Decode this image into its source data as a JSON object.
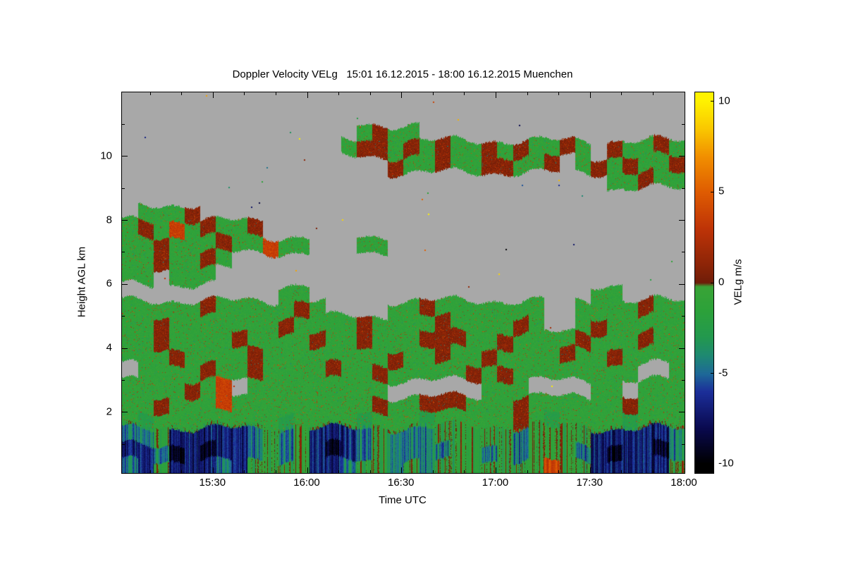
{
  "chart_data": {
    "type": "heatmap",
    "title": "Doppler Velocity VELg   15:01 16.12.2015 - 18:00 16.12.2015 Muenchen",
    "station": "Muenchen",
    "time_start": "15:01 16.12.2015",
    "time_end": "18:00 16.12.2015",
    "variable": "Doppler Velocity VELg (m/s)",
    "xlabel": "Time UTC",
    "ylabel": "Height AGL km",
    "x_tick_labels": [
      "15:30",
      "16:00",
      "16:30",
      "17:00",
      "17:30",
      "18:00"
    ],
    "x_tick_minutes": [
      930,
      960,
      990,
      1020,
      1050,
      1080
    ],
    "x_minor_step_minutes": 10,
    "x_range_minutes": [
      901,
      1080
    ],
    "y_ticks": [
      2,
      4,
      6,
      8,
      10
    ],
    "y_minor_ticks": [
      1,
      3,
      5,
      7,
      9,
      11
    ],
    "y_range_km": [
      0.1,
      12.0
    ],
    "colorbar": {
      "label": "VELg m/s",
      "ticks": [
        10,
        5,
        0,
        -5,
        -10
      ],
      "value_range": [
        -10,
        10
      ],
      "bar_range": [
        -10.5,
        10.5
      ],
      "stops": [
        [
          -10,
          "#000000"
        ],
        [
          -8,
          "#0a0a50"
        ],
        [
          -6,
          "#1c2f9a"
        ],
        [
          -5,
          "#1e6a98"
        ],
        [
          -4,
          "#1f8a72"
        ],
        [
          -3,
          "#23994f"
        ],
        [
          -1.5,
          "#2da23a"
        ],
        [
          -0.2,
          "#3aa437"
        ],
        [
          0.01,
          "#6f1d09"
        ],
        [
          1,
          "#8d2507"
        ],
        [
          3,
          "#bf3407"
        ],
        [
          5,
          "#df5c02"
        ],
        [
          7,
          "#f29100"
        ],
        [
          8.5,
          "#fac800"
        ],
        [
          10,
          "#fff200"
        ]
      ]
    },
    "no_data_color": "#a8a8a8",
    "background_color": "#ffffff",
    "grid_cell_km": 0.5,
    "grid_cols": 36,
    "grid_rows_order": "top row = 11.5-12.0 km, bottom row = 0.0-0.5 km; columns span 15:01 to 18:00 UTC (~5 min each)",
    "value_key": {
      ".": null,
      "g": -1.2,
      "G": -2.4,
      "o": 0.8,
      "r": 3.5,
      "t": -4.5,
      "b": -7.0,
      "k": -9.2
    },
    "grid_rows": [
      [
        "......",
        "......",
        "......",
        "......",
        "......",
        "......"
      ],
      [
        "......",
        "......",
        "......",
        "......",
        "......",
        "......"
      ],
      [
        "......",
        "......",
        "...gog",
        "g.....",
        "......",
        "......"
      ],
      [
        "......",
        "......",
        "..goog",
        "ogoggo",
        "goggog",
        ".oggog"
      ],
      [
        "......",
        "......",
        ".....o",
        "ggoggo",
        "oggo.g",
        "ogoggo"
      ],
      [
        "......",
        "......",
        "......",
        "......",
        "......",
        ".ggogg"
      ],
      [
        "......",
        "......",
        "......",
        "......",
        "......",
        "......"
      ],
      [
        ".gggo.",
        "......",
        "......",
        "......",
        "......",
        "......"
      ],
      [
        "gogrgo",
        "ggo...",
        "......",
        "......",
        "......",
        "......"
      ],
      [
        "ggoggg",
        "oggrgg",
        "...gg.",
        "......",
        "......",
        "......"
      ],
      [
        "ggoggo",
        "g.....",
        "......",
        "......",
        "......",
        "......"
      ],
      [
        "gg.ggg",
        "......",
        "......",
        "......",
        "......",
        "......"
      ],
      [
        "......",
        "....gg",
        "......",
        "......",
        "......",
        "gg...."
      ],
      [
        "gggggo",
        "gggggo",
        "g....g",
        "gogggg",
        "ggg..g",
        "gggogg"
      ],
      [
        "ggoggg",
        "ggggog",
        "gggogg",
        "ggoggg",
        "gog..g",
        "oggggg"
      ],
      [
        "ggoggg",
        "gogggg",
        "oggogg",
        "gooogg",
        "oggggo",
        "gggogg"
      ],
      [
        "gggogg",
        "ggoggg",
        "gggggo",
        "ggoggo",
        "ggggog",
        "gogggg"
      ],
      [
        ".ggggo",
        "ggoggg",
        "goggog",
        "ggggog",
        "oggggg",
        "ggg..g"
      ],
      [
        "ggggog",
        "r.gggg",
        "ggggg.",
        ".....g",
        "gg....",
        "gg.ggg"
      ],
      [
        "ggoggg",
        "rggggg",
        "ggggog",
        "gooogg",
        "gogggg",
        "ggoggg"
      ],
      [
        "gGgggg",
        "ggggGg",
        "gggGgg",
        "gGgggg",
        "gogGgg",
        "ggGggg"
      ],
      [
        "ttgbbb",
        "bbtgtg",
        "bbbtgt",
        "ttgggg",
        "gtgggg",
        "bbbbbt"
      ],
      [
        "bbtkbk",
        "bbtgtg",
        "bkbtgt",
        "tttggt",
        "gtgggt",
        "bkbbkt"
      ],
      [
        "tbgbbb",
        "tbgggg",
        "bbtggt",
        "gtgggg",
        "gggrgg",
        "bbbbbg"
      ]
    ]
  }
}
